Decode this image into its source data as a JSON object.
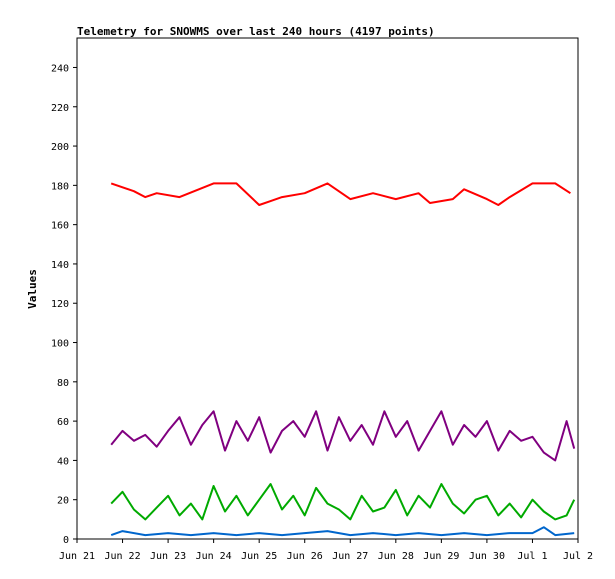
{
  "chart_data": {
    "type": "line",
    "title": "Telemetry for SNOWMS over last 240 hours (4197 points)",
    "xlabel": "",
    "ylabel": "Values",
    "ylim": [
      0,
      255
    ],
    "yticks": [
      0,
      20,
      40,
      60,
      80,
      100,
      120,
      140,
      160,
      180,
      200,
      220,
      240
    ],
    "xlim": [
      "2024-06-21T00:00",
      "2024-07-02T00:00"
    ],
    "xtick_labels": [
      "Jun 21",
      "Jun 22",
      "Jun 23",
      "Jun 24",
      "Jun 25",
      "Jun 26",
      "Jun 27",
      "Jun 28",
      "Jun 29",
      "Jun 30",
      "Jul 1",
      "Jul 2"
    ],
    "grid": false,
    "legend": "none",
    "series": [
      {
        "color": "#ff0000",
        "x": [
          "2024-06-21T18:00",
          "2024-06-22T06:00",
          "2024-06-22T12:00",
          "2024-06-22T18:00",
          "2024-06-23T06:00",
          "2024-06-24T00:00",
          "2024-06-24T12:00",
          "2024-06-25T00:00",
          "2024-06-25T06:00",
          "2024-06-25T12:00",
          "2024-06-26T00:00",
          "2024-06-26T12:00",
          "2024-06-27T00:00",
          "2024-06-27T12:00",
          "2024-06-28T00:00",
          "2024-06-28T12:00",
          "2024-06-28T18:00",
          "2024-06-29T06:00",
          "2024-06-29T12:00",
          "2024-06-30T00:00",
          "2024-06-30T06:00",
          "2024-06-30T12:00",
          "2024-07-01T00:00",
          "2024-07-01T12:00",
          "2024-07-01T20:00"
        ],
        "values": [
          181,
          177,
          174,
          176,
          174,
          181,
          181,
          170,
          172,
          174,
          176,
          181,
          173,
          176,
          173,
          176,
          171,
          173,
          178,
          173,
          170,
          174,
          181,
          181,
          176
        ]
      },
      {
        "color": "#800080",
        "x": [
          "2024-06-21T18:00",
          "2024-06-22T00:00",
          "2024-06-22T06:00",
          "2024-06-22T12:00",
          "2024-06-22T18:00",
          "2024-06-23T00:00",
          "2024-06-23T06:00",
          "2024-06-23T12:00",
          "2024-06-23T18:00",
          "2024-06-24T00:00",
          "2024-06-24T06:00",
          "2024-06-24T12:00",
          "2024-06-24T18:00",
          "2024-06-25T00:00",
          "2024-06-25T06:00",
          "2024-06-25T12:00",
          "2024-06-25T18:00",
          "2024-06-26T00:00",
          "2024-06-26T06:00",
          "2024-06-26T12:00",
          "2024-06-26T18:00",
          "2024-06-27T00:00",
          "2024-06-27T06:00",
          "2024-06-27T12:00",
          "2024-06-27T18:00",
          "2024-06-28T00:00",
          "2024-06-28T06:00",
          "2024-06-28T12:00",
          "2024-06-28T18:00",
          "2024-06-29T00:00",
          "2024-06-29T06:00",
          "2024-06-29T12:00",
          "2024-06-29T18:00",
          "2024-06-30T00:00",
          "2024-06-30T06:00",
          "2024-06-30T12:00",
          "2024-06-30T18:00",
          "2024-07-01T00:00",
          "2024-07-01T06:00",
          "2024-07-01T12:00",
          "2024-07-01T18:00",
          "2024-07-01T22:00"
        ],
        "values": [
          48,
          55,
          50,
          53,
          47,
          55,
          62,
          48,
          58,
          65,
          45,
          60,
          50,
          62,
          44,
          55,
          60,
          52,
          65,
          45,
          62,
          50,
          58,
          48,
          65,
          52,
          60,
          45,
          55,
          65,
          48,
          58,
          52,
          60,
          45,
          55,
          50,
          52,
          44,
          40,
          60,
          46
        ]
      },
      {
        "color": "#00aa00",
        "x": [
          "2024-06-21T18:00",
          "2024-06-22T00:00",
          "2024-06-22T06:00",
          "2024-06-22T12:00",
          "2024-06-22T18:00",
          "2024-06-23T00:00",
          "2024-06-23T06:00",
          "2024-06-23T12:00",
          "2024-06-23T18:00",
          "2024-06-24T00:00",
          "2024-06-24T06:00",
          "2024-06-24T12:00",
          "2024-06-24T18:00",
          "2024-06-25T00:00",
          "2024-06-25T06:00",
          "2024-06-25T12:00",
          "2024-06-25T18:00",
          "2024-06-26T00:00",
          "2024-06-26T06:00",
          "2024-06-26T12:00",
          "2024-06-26T18:00",
          "2024-06-27T00:00",
          "2024-06-27T06:00",
          "2024-06-27T12:00",
          "2024-06-27T18:00",
          "2024-06-28T00:00",
          "2024-06-28T06:00",
          "2024-06-28T12:00",
          "2024-06-28T18:00",
          "2024-06-29T00:00",
          "2024-06-29T06:00",
          "2024-06-29T12:00",
          "2024-06-29T18:00",
          "2024-06-30T00:00",
          "2024-06-30T06:00",
          "2024-06-30T12:00",
          "2024-06-30T18:00",
          "2024-07-01T00:00",
          "2024-07-01T06:00",
          "2024-07-01T12:00",
          "2024-07-01T18:00",
          "2024-07-01T22:00"
        ],
        "values": [
          18,
          24,
          15,
          10,
          16,
          22,
          12,
          18,
          10,
          27,
          14,
          22,
          12,
          20,
          28,
          15,
          22,
          12,
          26,
          18,
          15,
          10,
          22,
          14,
          16,
          25,
          12,
          22,
          16,
          28,
          18,
          13,
          20,
          22,
          12,
          18,
          11,
          20,
          14,
          10,
          12,
          20
        ]
      },
      {
        "color": "#0066cc",
        "x": [
          "2024-06-21T18:00",
          "2024-06-22T00:00",
          "2024-06-22T12:00",
          "2024-06-23T00:00",
          "2024-06-23T12:00",
          "2024-06-24T00:00",
          "2024-06-24T12:00",
          "2024-06-25T00:00",
          "2024-06-25T12:00",
          "2024-06-26T00:00",
          "2024-06-26T12:00",
          "2024-06-27T00:00",
          "2024-06-27T12:00",
          "2024-06-28T00:00",
          "2024-06-28T12:00",
          "2024-06-29T00:00",
          "2024-06-29T12:00",
          "2024-06-30T00:00",
          "2024-06-30T12:00",
          "2024-07-01T00:00",
          "2024-07-01T06:00",
          "2024-07-01T12:00",
          "2024-07-01T22:00"
        ],
        "values": [
          2,
          4,
          2,
          3,
          2,
          3,
          2,
          3,
          2,
          3,
          4,
          2,
          3,
          2,
          3,
          2,
          3,
          2,
          3,
          3,
          6,
          2,
          3
        ]
      }
    ]
  }
}
